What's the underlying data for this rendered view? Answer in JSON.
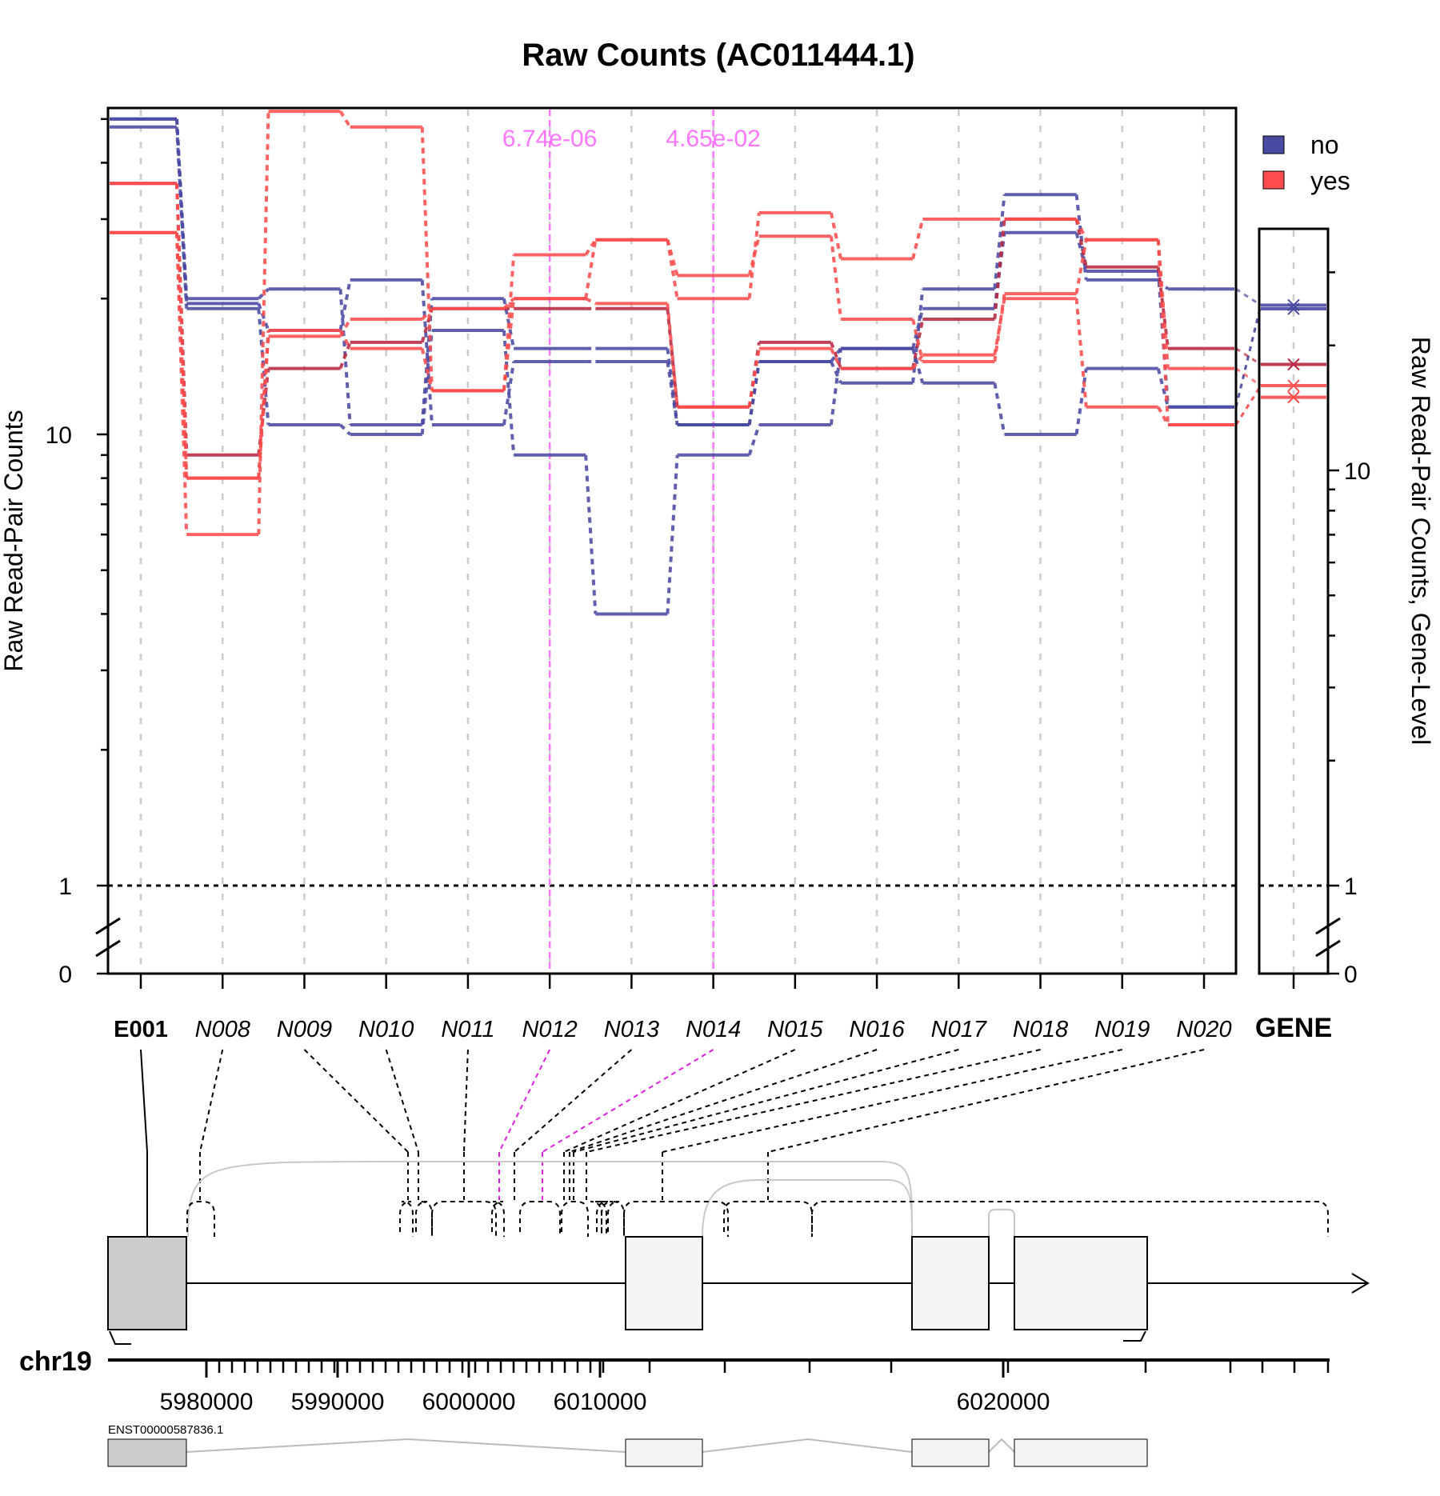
{
  "chart_data": {
    "type": "line",
    "title": "Raw Counts (AC011444.1)",
    "ylabel": "Raw Read-Pair Counts",
    "ylabel_right": "Raw Read-Pair Counts, Gene-Level",
    "y_scale": "log",
    "y_ticks_main": [
      "0",
      "1",
      "10"
    ],
    "y_ticks_gene": [
      "0",
      "1",
      "10"
    ],
    "categories": [
      "E001",
      "N008",
      "N009",
      "N010",
      "N011",
      "N012",
      "N013",
      "N014",
      "N015",
      "N016",
      "N017",
      "N018",
      "N019",
      "N020"
    ],
    "gene_label": "GENE",
    "legend": [
      {
        "label": "no",
        "color": "#4a4aa3"
      },
      {
        "label": "yes",
        "color": "#ff4d4d"
      }
    ],
    "legend_position": "top-right",
    "colors": {
      "no": "#4a4aa3",
      "yes": "#ff4d4d",
      "mid": "#b82840",
      "highlight": "#ff77ff"
    },
    "series": [
      {
        "group": "no",
        "values": [
          50,
          20,
          21,
          10.5,
          20,
          15.5,
          15.5,
          10.5,
          14.5,
          13,
          21,
          34,
          22,
          21
        ]
      },
      {
        "group": "no",
        "values": [
          48,
          19,
          10.5,
          10,
          17,
          9,
          4,
          9,
          10.5,
          15.5,
          13,
          10,
          14,
          11.5
        ]
      },
      {
        "group": "no",
        "values": [
          50,
          19.5,
          17,
          22,
          10.5,
          14.5,
          14.5,
          10.5,
          14.5,
          15.5,
          19,
          28,
          23,
          11.5
        ]
      },
      {
        "group": "mid",
        "values": [
          36,
          9,
          14,
          16,
          19,
          19,
          19,
          11.5,
          16,
          14,
          18,
          30,
          23.5,
          15.5
        ]
      },
      {
        "group": "yes",
        "values": [
          28,
          8,
          16.5,
          18,
          19,
          20,
          27,
          20,
          31,
          24.5,
          30,
          30,
          27,
          14
        ]
      },
      {
        "group": "yes",
        "values": [
          28,
          6,
          52,
          48,
          12.5,
          25,
          27,
          22.5,
          27.5,
          18,
          14.5,
          20.5,
          27,
          10.5
        ]
      },
      {
        "group": "yes",
        "values": [
          36,
          8,
          17,
          15.5,
          12.5,
          20,
          19.5,
          11.5,
          15.5,
          14,
          15,
          20,
          11.5,
          10.5
        ]
      }
    ],
    "gene_level": [
      {
        "group": "no",
        "value": 25
      },
      {
        "group": "no",
        "value": 24.5
      },
      {
        "group": "mid",
        "value": 18
      },
      {
        "group": "yes",
        "value": 16
      },
      {
        "group": "yes",
        "value": 15
      }
    ],
    "pvalue_annotations": [
      {
        "category": "N012",
        "label": "6.74e-06"
      },
      {
        "category": "N014",
        "label": "4.65e-02"
      }
    ],
    "highlighted_categories": [
      "N012",
      "N014"
    ],
    "genomic_track": {
      "chromosome": "chr19",
      "x_ticks": [
        "5980000",
        "5990000",
        "6000000",
        "6010000",
        "6020000"
      ],
      "transcript_label": "ENST00000587836.1"
    }
  }
}
